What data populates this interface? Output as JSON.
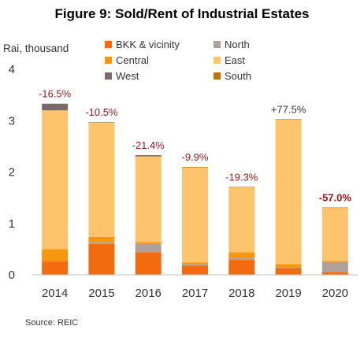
{
  "chart_data": {
    "type": "bar",
    "stacked": true,
    "title": "Figure 9: Sold/Rent of Industrial Estates",
    "ylabel": "Rai, thousand",
    "xlabel": "",
    "ylim": [
      0,
      4
    ],
    "yticks": [
      "0",
      "1",
      "2",
      "3",
      "4"
    ],
    "categories": [
      "2014",
      "2015",
      "2016",
      "2017",
      "2018",
      "2019",
      "2020"
    ],
    "series": [
      {
        "name": "BKK & vicinity",
        "color": "#f26b0f",
        "values": [
          0.26,
          0.6,
          0.44,
          0.18,
          0.29,
          0.13,
          0.05
        ]
      },
      {
        "name": "North",
        "color": "#b0a09a",
        "values": [
          0.0,
          0.03,
          0.17,
          0.02,
          0.04,
          0.02,
          0.2
        ]
      },
      {
        "name": "Central",
        "color": "#f7960f",
        "values": [
          0.24,
          0.11,
          0.03,
          0.04,
          0.11,
          0.06,
          0.02
        ]
      },
      {
        "name": "East",
        "color": "#fdc46b",
        "values": [
          2.7,
          2.22,
          1.66,
          1.85,
          1.26,
          2.81,
          1.03
        ]
      },
      {
        "name": "West",
        "color": "#7a6a6a",
        "values": [
          0.13,
          0.0,
          0.01,
          0.0,
          0.0,
          0.0,
          0.0
        ]
      },
      {
        "name": "South",
        "color": "#c07010",
        "values": [
          0.0,
          0.01,
          0.02,
          0.01,
          0.01,
          0.01,
          0.01
        ]
      }
    ],
    "annotations": [
      "-16.5%",
      "-10.5%",
      "-21.4%",
      "-9.9%",
      "-19.3%",
      "+77.5%",
      "-57.0%"
    ],
    "legend_position": "top",
    "grid": false
  },
  "source": "Source: REIC"
}
